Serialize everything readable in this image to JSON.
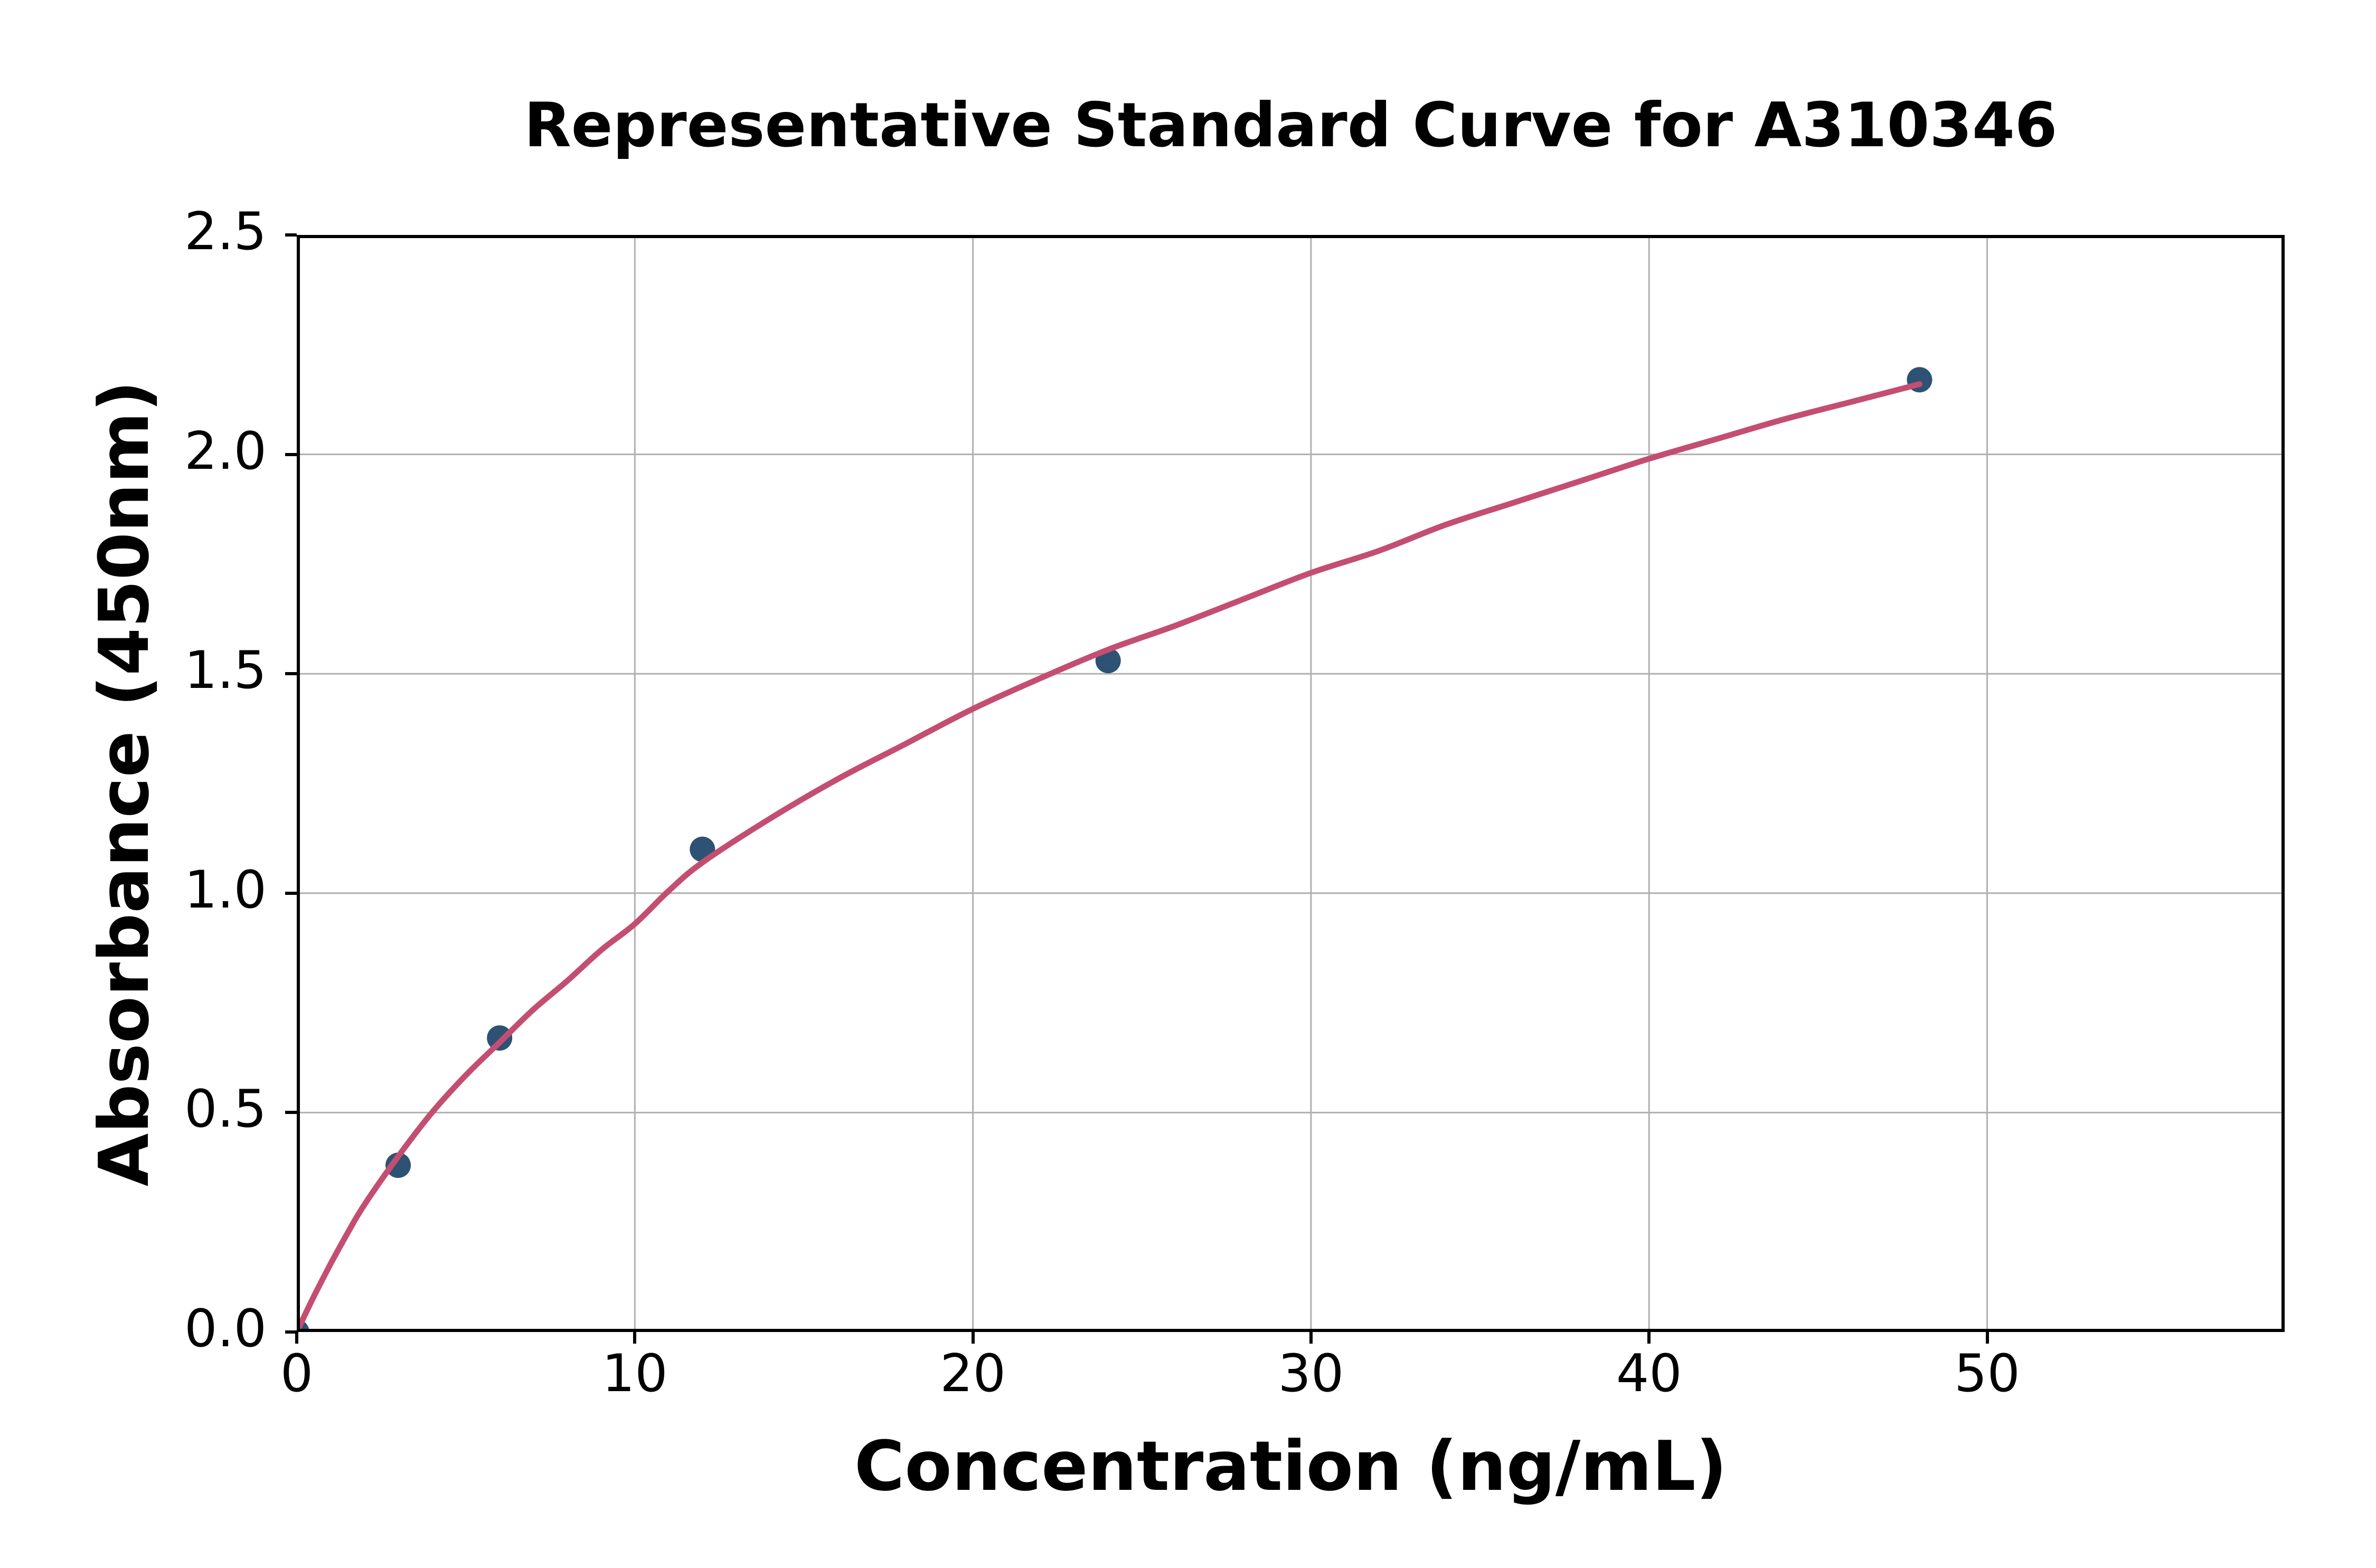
{
  "figure": {
    "background": "#FFFFFF"
  },
  "chart_data": {
    "type": "scatter",
    "title": "Representative Standard Curve for A310346",
    "xlabel": "Concentration (ng/mL)",
    "ylabel": "Absorbance (450nm)",
    "xlim": [
      0,
      58.8
    ],
    "ylim": [
      0,
      2.5
    ],
    "x_ticks": [
      0,
      10,
      20,
      30,
      40,
      50
    ],
    "x_tick_labels": [
      "0",
      "10",
      "20",
      "30",
      "40",
      "50"
    ],
    "y_ticks": [
      0,
      0.5,
      1,
      1.5,
      2,
      2.5
    ],
    "y_tick_labels": [
      "0.0",
      "0.5",
      "1.0",
      "1.5",
      "2.0",
      "2.5"
    ],
    "grid": true,
    "legend": "none",
    "series": [
      {
        "name": "standard-points",
        "kind": "scatter",
        "color": "#2E5273",
        "points": [
          [
            0,
            0.0
          ],
          [
            3,
            0.38
          ],
          [
            6,
            0.67
          ],
          [
            12,
            1.1
          ],
          [
            24,
            1.53
          ],
          [
            48,
            2.17
          ]
        ]
      },
      {
        "name": "fit-curve",
        "kind": "line",
        "color": "#C44E71",
        "points": [
          [
            0,
            0
          ],
          [
            0.5,
            0.08
          ],
          [
            1,
            0.155
          ],
          [
            1.5,
            0.225
          ],
          [
            2,
            0.29
          ],
          [
            3,
            0.4
          ],
          [
            4,
            0.5
          ],
          [
            5,
            0.585
          ],
          [
            6,
            0.66
          ],
          [
            7,
            0.735
          ],
          [
            8,
            0.8
          ],
          [
            9,
            0.87
          ],
          [
            10,
            0.93
          ],
          [
            11,
            1.005
          ],
          [
            12,
            1.07
          ],
          [
            14,
            1.17
          ],
          [
            16,
            1.26
          ],
          [
            18,
            1.34
          ],
          [
            20,
            1.42
          ],
          [
            22,
            1.49
          ],
          [
            24,
            1.555
          ],
          [
            26,
            1.61
          ],
          [
            28,
            1.67
          ],
          [
            30,
            1.73
          ],
          [
            32,
            1.78
          ],
          [
            34,
            1.84
          ],
          [
            36,
            1.89
          ],
          [
            38,
            1.94
          ],
          [
            40,
            1.99
          ],
          [
            42,
            2.035
          ],
          [
            44,
            2.08
          ],
          [
            46,
            2.12
          ],
          [
            48,
            2.16
          ]
        ]
      }
    ],
    "colors": {
      "grid": "#B0B0B0",
      "spine": "#000000",
      "background": "#FFFFFF",
      "point": "#2E5273",
      "curve": "#C44E71"
    }
  }
}
